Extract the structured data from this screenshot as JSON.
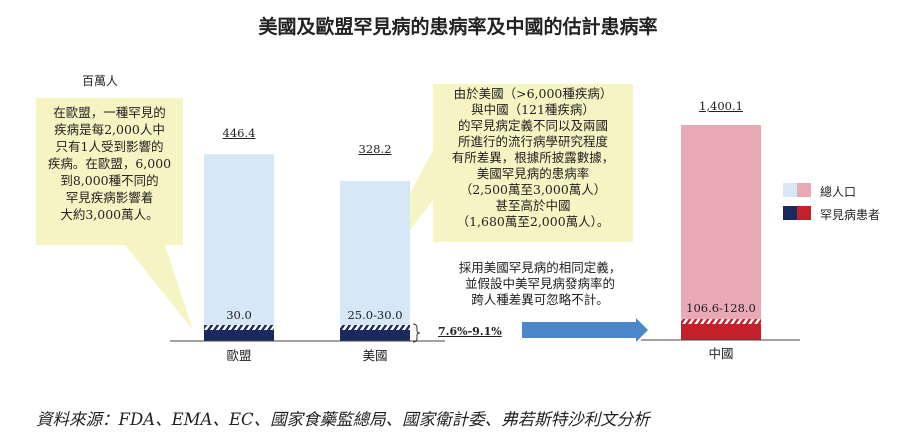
{
  "chart_data": {
    "type": "bar",
    "title": "美國及歐盟罕見病的患病率及中國的估計患病率",
    "ylabel": "百萬人",
    "categories": [
      "歐盟",
      "美國",
      "中國"
    ],
    "series": [
      {
        "name": "總人口",
        "values": [
          446.4,
          328.2,
          1400.1
        ],
        "labels": [
          "446.4",
          "328.2",
          "1,400.1"
        ]
      },
      {
        "name": "罕見病患者",
        "values": [
          30.0,
          [
            25.0,
            30.0
          ],
          [
            106.6,
            128.0
          ]
        ],
        "labels": [
          "30.0",
          "25.0-30.0",
          "106.6-128.0"
        ]
      }
    ],
    "colors": {
      "eu_us_total": "#d6e8f6",
      "eu_us_patients": "#1b2a5e",
      "china_total": "#e9a9b5",
      "china_patients": "#c3202a"
    },
    "annotations": {
      "ratio": "7.6%-9.1%",
      "eu_callout": [
        "在歐盟，一種罕見的",
        "疾病是每2,000人中",
        "只有1人受到影響的",
        "疾病。在歐盟，6,000",
        "到8,000種不同的",
        "罕見疾病影響着",
        "大約3,000萬人。"
      ],
      "us_callout": [
        "由於美國（>6,000種疾病）",
        "與中國（121種疾病）",
        "的罕見病定義不同以及兩國",
        "所進行的流行病學研究程度",
        "有所差異，根據所披露數據，",
        "美國罕見病的患病率",
        "（2,500萬至3,000萬人）",
        "甚至高於中國",
        "（1,680萬至2,000萬人）。"
      ],
      "assumption": [
        "採用美國罕見病的相同定義，",
        "並假設中美罕見病發病率的",
        "跨人種差異可忽略不計。"
      ]
    },
    "legend": {
      "placement": "right",
      "items": [
        "總人口",
        "罕見病患者"
      ]
    },
    "source": "資料來源：FDA、EMA、EC、國家食藥監總局、國家衛計委、弗若斯特沙利文分析"
  }
}
